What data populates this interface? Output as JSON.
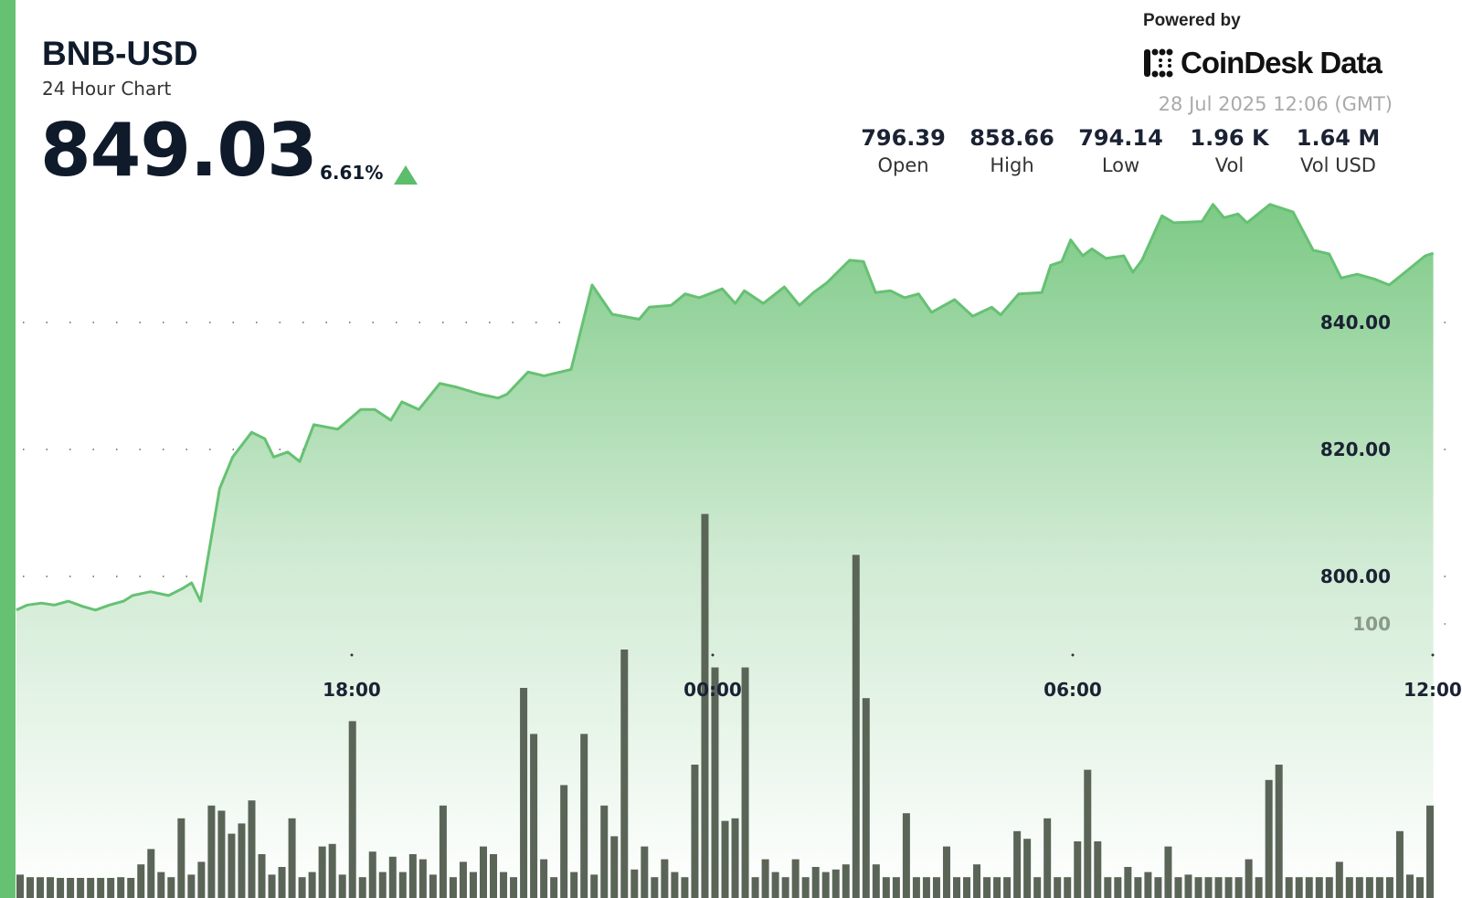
{
  "header": {
    "symbol": "BNB-USD",
    "subtitle": "24 Hour Chart",
    "price": "849.03",
    "change": "6.61%",
    "direction": "up"
  },
  "branding": {
    "powered_by": "Powered by",
    "logo_text": "CoinDesk Data",
    "timestamp": "28 Jul 2025 12:06 (GMT)"
  },
  "stats": [
    {
      "value": "796.39",
      "label": "Open"
    },
    {
      "value": "858.66",
      "label": "High"
    },
    {
      "value": "794.14",
      "label": "Low"
    },
    {
      "value": "1.96 K",
      "label": "Vol"
    },
    {
      "value": "1.64 M",
      "label": "Vol USD"
    }
  ],
  "colors": {
    "accent": "#5cbd6b",
    "line": "#66c173",
    "volume": "#5a6558"
  },
  "chart_data": {
    "type": "area",
    "price_ticks": [
      "840.00",
      "820.00",
      "800.00"
    ],
    "price_tick_values": [
      840,
      820,
      800
    ],
    "volume_tick": "100",
    "volume_tick_value": 100,
    "x_ticks": [
      "18:00",
      "00:00",
      "06:00",
      "12:00"
    ],
    "grid": "dotted horizontal",
    "price_series": [
      [
        "12:25",
        794.7
      ],
      [
        "12:36",
        795.5
      ],
      [
        "12:50",
        795.8
      ],
      [
        "13:03",
        795.5
      ],
      [
        "13:17",
        796.1
      ],
      [
        "13:31",
        795.3
      ],
      [
        "13:44",
        794.7
      ],
      [
        "13:58",
        795.5
      ],
      [
        "14:12",
        796.1
      ],
      [
        "14:21",
        797
      ],
      [
        "14:39",
        797.6
      ],
      [
        "14:57",
        797
      ],
      [
        "15:11",
        798.1
      ],
      [
        "15:20",
        799
      ],
      [
        "15:29",
        796.1
      ],
      [
        "15:48",
        813.8
      ],
      [
        "16:01",
        818.8
      ],
      [
        "16:20",
        822.7
      ],
      [
        "16:33",
        821.7
      ],
      [
        "16:42",
        818.8
      ],
      [
        "16:56",
        819.6
      ],
      [
        "17:08",
        818.1
      ],
      [
        "17:22",
        823.9
      ],
      [
        "17:46",
        823.2
      ],
      [
        "18:09",
        826.3
      ],
      [
        "18:23",
        826.3
      ],
      [
        "18:39",
        824.6
      ],
      [
        "18:50",
        827.5
      ],
      [
        "19:07",
        826.3
      ],
      [
        "19:28",
        830.4
      ],
      [
        "19:45",
        829.8
      ],
      [
        "20:08",
        828.7
      ],
      [
        "20:26",
        828.1
      ],
      [
        "20:35",
        828.7
      ],
      [
        "20:56",
        832.2
      ],
      [
        "21:12",
        831.6
      ],
      [
        "21:39",
        832.6
      ],
      [
        "22:00",
        845.9
      ],
      [
        "22:20",
        841.3
      ],
      [
        "22:47",
        840.5
      ],
      [
        "22:57",
        842.4
      ],
      [
        "23:19",
        842.7
      ],
      [
        "23:33",
        844.5
      ],
      [
        "23:47",
        843.9
      ],
      [
        "00:10",
        845.3
      ],
      [
        "00:23",
        843
      ],
      [
        "00:32",
        845
      ],
      [
        "00:51",
        843
      ],
      [
        "01:12",
        845.6
      ],
      [
        "01:27",
        842.7
      ],
      [
        "01:41",
        844.7
      ],
      [
        "01:54",
        846.2
      ],
      [
        "02:17",
        849.8
      ],
      [
        "02:31",
        849.6
      ],
      [
        "02:43",
        844.7
      ],
      [
        "02:58",
        845
      ],
      [
        "03:12",
        843.9
      ],
      [
        "03:26",
        844.5
      ],
      [
        "03:39",
        841.6
      ],
      [
        "04:02",
        843.6
      ],
      [
        "04:20",
        841
      ],
      [
        "04:39",
        842.4
      ],
      [
        "04:48",
        841.2
      ],
      [
        "05:06",
        844.5
      ],
      [
        "05:29",
        844.7
      ],
      [
        "05:38",
        849
      ],
      [
        "05:49",
        849.6
      ],
      [
        "05:58",
        853
      ],
      [
        "06:10",
        850.5
      ],
      [
        "06:19",
        851.6
      ],
      [
        "06:33",
        850.1
      ],
      [
        "06:51",
        850.5
      ],
      [
        "07:00",
        847.9
      ],
      [
        "07:09",
        849.8
      ],
      [
        "07:29",
        856.8
      ],
      [
        "07:41",
        855.7
      ],
      [
        "08:09",
        855.9
      ],
      [
        "08:20",
        858.6
      ],
      [
        "08:31",
        856.5
      ],
      [
        "08:45",
        857.1
      ],
      [
        "08:54",
        855.7
      ],
      [
        "09:17",
        858.6
      ],
      [
        "09:40",
        857.4
      ],
      [
        "10:00",
        851.4
      ],
      [
        "10:16",
        850.8
      ],
      [
        "10:28",
        847
      ],
      [
        "10:44",
        847.6
      ],
      [
        "11:02",
        846.8
      ],
      [
        "11:16",
        845.9
      ],
      [
        "11:34",
        848.2
      ],
      [
        "11:52",
        850.5
      ],
      [
        "12:00",
        850.9
      ]
    ],
    "volume_values": [
      2,
      1,
      1,
      1,
      0,
      0,
      0,
      0,
      0,
      0,
      1,
      0,
      6,
      12,
      3,
      1,
      24,
      2,
      7,
      29,
      27,
      18,
      22,
      31,
      10,
      2,
      5,
      24,
      1,
      3,
      13,
      14,
      2,
      62,
      1,
      11,
      3,
      9,
      3,
      10,
      8,
      2,
      29,
      1,
      7,
      3,
      13,
      10,
      3,
      1,
      75,
      57,
      8,
      1,
      37,
      3,
      57,
      2,
      29,
      17,
      90,
      4,
      13,
      1,
      8,
      3,
      1,
      45,
      143,
      83,
      23,
      24,
      83,
      1,
      8,
      3,
      1,
      8,
      1,
      5,
      3,
      4,
      6,
      127,
      71,
      6,
      1,
      1,
      26,
      1,
      1,
      1,
      13,
      1,
      1,
      6,
      1,
      1,
      1,
      19,
      16,
      1,
      24,
      1,
      1,
      15,
      43,
      15,
      1,
      1,
      5,
      1,
      3,
      1,
      13,
      1,
      2,
      1,
      1,
      1,
      1,
      1,
      8,
      1,
      39,
      45,
      1,
      1,
      1,
      1,
      1,
      7,
      1,
      1,
      1,
      1,
      1,
      19,
      2,
      1,
      29
    ]
  }
}
